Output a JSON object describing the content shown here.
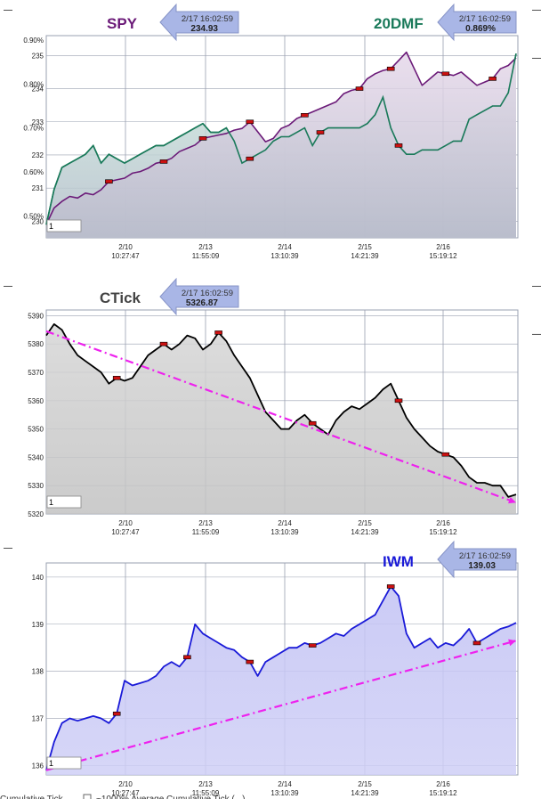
{
  "colors": {
    "spy": "#6b1a78",
    "dmf": "#1a7a5a",
    "ctick": "#000000",
    "iwm": "#1a1ad8",
    "trend": "#ee22ee",
    "callout": "#a9b6e6",
    "marker": "#cc1111"
  },
  "x_axis": {
    "ticks": [
      {
        "date": "2/10",
        "time": "10:27:47"
      },
      {
        "date": "2/13",
        "time": "11:55:09"
      },
      {
        "date": "2/14",
        "time": "13:10:39"
      },
      {
        "date": "2/15",
        "time": "14:21:39"
      },
      {
        "date": "2/16",
        "time": "15:19:12"
      }
    ]
  },
  "panels": {
    "p1": {
      "title_left": "SPY",
      "title_right": "20DMF",
      "callout_left": {
        "timestamp": "2/17 16:02:59",
        "value": "234.93"
      },
      "callout_right": {
        "timestamp": "2/17 16:02:59",
        "value": "0.869%"
      },
      "input_value": "1"
    },
    "p2": {
      "title": "CTick",
      "callout": {
        "timestamp": "2/17 16:02:59",
        "value": "5326.87"
      },
      "input_value": "1"
    },
    "p3": {
      "title": "IWM",
      "callout": {
        "timestamp": "2/17 16:02:59",
        "value": "139.03"
      },
      "input_value": "1"
    }
  },
  "side_dashes": [
    "—",
    "—",
    "—",
    "—",
    "—",
    "—"
  ],
  "footer": {
    "left_label": "Cumulative Tick",
    "right_label": "~1000% Average Cumulative Tick (...)"
  },
  "chart_data": [
    {
      "type": "area",
      "title": "SPY",
      "y_ticks": [
        230,
        231,
        232,
        233,
        234,
        235
      ],
      "ylim": [
        229.5,
        235.6
      ],
      "series": [
        {
          "name": "SPY",
          "color": "#6b1a78",
          "x": [
            0,
            1,
            2,
            3,
            4,
            5,
            6,
            7,
            8,
            9,
            10,
            11,
            12,
            13,
            14,
            15,
            16,
            17,
            18,
            19,
            20,
            21,
            22,
            23,
            24,
            25,
            26,
            27,
            28,
            29,
            30,
            31,
            32,
            33,
            34,
            35,
            36,
            37,
            38,
            39,
            40,
            41,
            42,
            43,
            44,
            45,
            46,
            47,
            48,
            49,
            50,
            51,
            52,
            53,
            54,
            55,
            56,
            57,
            58,
            59,
            60
          ],
          "values": [
            229.9,
            230.4,
            230.6,
            230.75,
            230.7,
            230.85,
            230.8,
            230.95,
            231.2,
            231.25,
            231.3,
            231.45,
            231.5,
            231.6,
            231.75,
            231.8,
            231.9,
            232.1,
            232.2,
            232.3,
            232.5,
            232.55,
            232.6,
            232.65,
            232.75,
            232.8,
            233.0,
            232.7,
            232.4,
            232.5,
            232.8,
            232.9,
            233.1,
            233.2,
            233.3,
            233.4,
            233.5,
            233.6,
            233.85,
            233.95,
            234.0,
            234.3,
            234.45,
            234.55,
            234.6,
            234.85,
            235.1,
            234.6,
            234.1,
            234.3,
            234.5,
            234.45,
            234.4,
            234.5,
            234.3,
            234.1,
            234.2,
            234.3,
            234.6,
            234.7,
            234.93
          ]
        },
        {
          "name": "20DMF",
          "color": "#1a7a5a",
          "x": [
            0,
            1,
            2,
            3,
            4,
            5,
            6,
            7,
            8,
            9,
            10,
            11,
            12,
            13,
            14,
            15,
            16,
            17,
            18,
            19,
            20,
            21,
            22,
            23,
            24,
            25,
            26,
            27,
            28,
            29,
            30,
            31,
            32,
            33,
            34,
            35,
            36,
            37,
            38,
            39,
            40,
            41,
            42,
            43,
            44,
            45,
            46,
            47,
            48,
            49,
            50,
            51,
            52,
            53,
            54,
            55,
            56,
            57,
            58,
            59,
            60
          ],
          "values": [
            0.48,
            0.56,
            0.61,
            0.62,
            0.63,
            0.64,
            0.66,
            0.62,
            0.64,
            0.63,
            0.62,
            0.63,
            0.64,
            0.65,
            0.66,
            0.66,
            0.67,
            0.68,
            0.69,
            0.7,
            0.71,
            0.69,
            0.69,
            0.7,
            0.67,
            0.62,
            0.63,
            0.64,
            0.65,
            0.67,
            0.68,
            0.68,
            0.69,
            0.7,
            0.66,
            0.69,
            0.7,
            0.7,
            0.7,
            0.7,
            0.7,
            0.71,
            0.73,
            0.77,
            0.7,
            0.66,
            0.64,
            0.64,
            0.65,
            0.65,
            0.65,
            0.66,
            0.67,
            0.67,
            0.72,
            0.73,
            0.74,
            0.75,
            0.75,
            0.78,
            0.869
          ]
        }
      ],
      "y2_ticks": [
        "0.50%",
        "0.60%",
        "0.70%",
        "0.80%",
        "0.90%"
      ],
      "y2lim": [
        0.45,
        0.91
      ]
    },
    {
      "type": "area",
      "title": "CTick",
      "y_ticks": [
        5320,
        5330,
        5340,
        5350,
        5360,
        5370,
        5380,
        5390
      ],
      "ylim": [
        5320,
        5392
      ],
      "series": [
        {
          "name": "CTick",
          "color": "#000000",
          "x": [
            0,
            1,
            2,
            3,
            4,
            5,
            6,
            7,
            8,
            9,
            10,
            11,
            12,
            13,
            14,
            15,
            16,
            17,
            18,
            19,
            20,
            21,
            22,
            23,
            24,
            25,
            26,
            27,
            28,
            29,
            30,
            31,
            32,
            33,
            34,
            35,
            36,
            37,
            38,
            39,
            40,
            41,
            42,
            43,
            44,
            45,
            46,
            47,
            48,
            49,
            50,
            51,
            52,
            53,
            54,
            55,
            56,
            57,
            58,
            59,
            60
          ],
          "values": [
            5383,
            5387,
            5385,
            5380,
            5376,
            5374,
            5372,
            5370,
            5366,
            5368,
            5367,
            5368,
            5372,
            5376,
            5378,
            5380,
            5378,
            5380,
            5383,
            5382,
            5378,
            5380,
            5384,
            5381,
            5376,
            5372,
            5368,
            5362,
            5356,
            5353,
            5350,
            5350,
            5353,
            5355,
            5352,
            5350,
            5348,
            5353,
            5356,
            5358,
            5357,
            5359,
            5361,
            5364,
            5366,
            5360,
            5354,
            5350,
            5347,
            5344,
            5342,
            5341,
            5340,
            5337,
            5333,
            5331,
            5331,
            5330,
            5330,
            5326,
            5326.87
          ]
        },
        {
          "name": "",
          "type": "trend",
          "color": "#ee22ee",
          "x": [
            0,
            60
          ],
          "values": [
            5384.5,
            5324
          ]
        }
      ]
    },
    {
      "type": "area",
      "title": "IWM",
      "y_ticks": [
        136,
        137,
        138,
        139,
        140
      ],
      "ylim": [
        135.8,
        140.3
      ],
      "series": [
        {
          "name": "IWM",
          "color": "#1a1ad8",
          "x": [
            0,
            1,
            2,
            3,
            4,
            5,
            6,
            7,
            8,
            9,
            10,
            11,
            12,
            13,
            14,
            15,
            16,
            17,
            18,
            19,
            20,
            21,
            22,
            23,
            24,
            25,
            26,
            27,
            28,
            29,
            30,
            31,
            32,
            33,
            34,
            35,
            36,
            37,
            38,
            39,
            40,
            41,
            42,
            43,
            44,
            45,
            46,
            47,
            48,
            49,
            50,
            51,
            52,
            53,
            54,
            55,
            56,
            57,
            58,
            59,
            60
          ],
          "values": [
            135.9,
            136.5,
            136.9,
            137.0,
            136.95,
            137.0,
            137.05,
            137.0,
            136.9,
            137.1,
            137.8,
            137.7,
            137.75,
            137.8,
            137.9,
            138.1,
            138.2,
            138.1,
            138.3,
            139.0,
            138.8,
            138.7,
            138.6,
            138.5,
            138.45,
            138.3,
            138.2,
            137.9,
            138.2,
            138.3,
            138.4,
            138.5,
            138.5,
            138.6,
            138.55,
            138.6,
            138.7,
            138.8,
            138.75,
            138.9,
            139.0,
            139.1,
            139.2,
            139.5,
            139.8,
            139.6,
            138.8,
            138.5,
            138.6,
            138.7,
            138.5,
            138.6,
            138.55,
            138.7,
            138.9,
            138.6,
            138.7,
            138.8,
            138.9,
            138.95,
            139.03
          ]
        },
        {
          "name": "",
          "type": "trend",
          "color": "#ee22ee",
          "x": [
            0,
            60
          ],
          "values": [
            135.9,
            138.65
          ]
        }
      ]
    }
  ]
}
